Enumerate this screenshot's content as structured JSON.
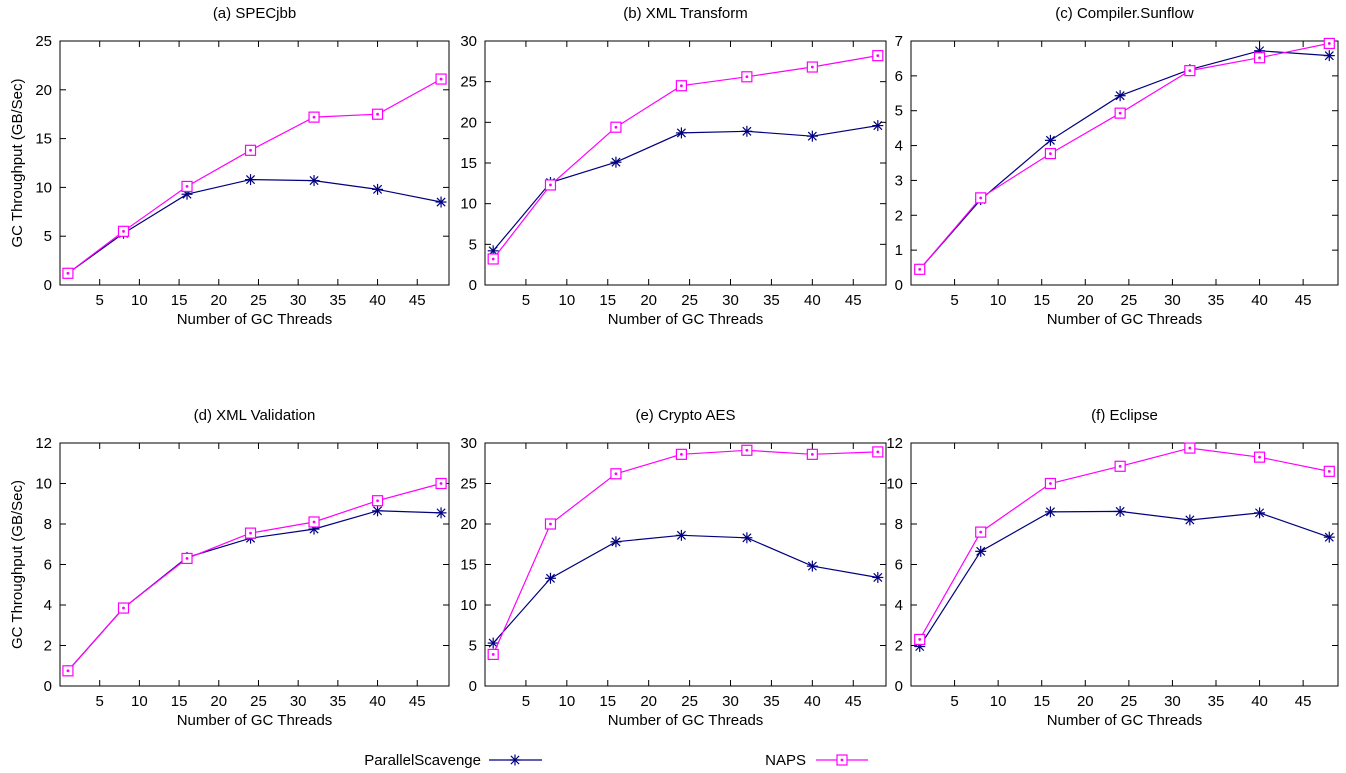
{
  "figure": {
    "xlabel": "Number of GC Threads",
    "ylabel": "GC Throughput (GB/Sec)",
    "x_ticks": [
      5,
      10,
      15,
      20,
      25,
      30,
      35,
      40,
      45
    ],
    "legend": [
      {
        "name": "ParallelScavenge",
        "color": "#000080",
        "marker": "star"
      },
      {
        "name": "NAPS",
        "color": "#ff00ff",
        "marker": "square-dot"
      }
    ]
  },
  "chart_data": [
    {
      "type": "line",
      "title": "(a) SPECjbb",
      "xlabel": "Number of GC Threads",
      "ylabel": "GC Throughput (GB/Sec)",
      "x": [
        1,
        8,
        16,
        24,
        32,
        40,
        48
      ],
      "xlim": [
        0,
        49
      ],
      "ylim": [
        0,
        25
      ],
      "y_ticks": [
        0,
        5,
        10,
        15,
        20,
        25
      ],
      "series": [
        {
          "name": "ParallelScavenge",
          "values": [
            1.2,
            5.3,
            9.3,
            10.8,
            10.7,
            9.8,
            8.5
          ]
        },
        {
          "name": "NAPS",
          "values": [
            1.2,
            5.5,
            10.1,
            13.8,
            17.2,
            17.5,
            21.1
          ]
        }
      ]
    },
    {
      "type": "line",
      "title": "(b) XML Transform",
      "xlabel": "Number of GC Threads",
      "ylabel": "",
      "x": [
        1,
        8,
        16,
        24,
        32,
        40,
        48
      ],
      "xlim": [
        0,
        49
      ],
      "ylim": [
        0,
        30
      ],
      "y_ticks": [
        0,
        5,
        10,
        15,
        20,
        25,
        30
      ],
      "series": [
        {
          "name": "ParallelScavenge",
          "values": [
            4.2,
            12.6,
            15.1,
            18.7,
            18.9,
            18.3,
            19.6
          ]
        },
        {
          "name": "NAPS",
          "values": [
            3.2,
            12.3,
            19.4,
            24.5,
            25.6,
            26.8,
            28.2
          ]
        }
      ]
    },
    {
      "type": "line",
      "title": "(c) Compiler.Sunflow",
      "xlabel": "Number of GC Threads",
      "ylabel": "",
      "x": [
        1,
        8,
        16,
        24,
        32,
        40,
        48
      ],
      "xlim": [
        0,
        49
      ],
      "ylim": [
        0,
        7
      ],
      "y_ticks": [
        0,
        1,
        2,
        3,
        4,
        5,
        6,
        7
      ],
      "series": [
        {
          "name": "ParallelScavenge",
          "values": [
            0.45,
            2.45,
            4.15,
            5.43,
            6.18,
            6.72,
            6.58
          ]
        },
        {
          "name": "NAPS",
          "values": [
            0.45,
            2.5,
            3.77,
            4.93,
            6.15,
            6.52,
            6.93
          ]
        }
      ]
    },
    {
      "type": "line",
      "title": "(d) XML Validation",
      "xlabel": "Number of GC Threads",
      "ylabel": "GC Throughput (GB/Sec)",
      "x": [
        1,
        8,
        16,
        24,
        32,
        40,
        48
      ],
      "xlim": [
        0,
        49
      ],
      "ylim": [
        0,
        12
      ],
      "y_ticks": [
        0,
        2,
        4,
        6,
        8,
        10,
        12
      ],
      "series": [
        {
          "name": "ParallelScavenge",
          "values": [
            0.75,
            3.85,
            6.35,
            7.3,
            7.75,
            8.65,
            8.55
          ]
        },
        {
          "name": "NAPS",
          "values": [
            0.75,
            3.85,
            6.3,
            7.55,
            8.1,
            9.15,
            10.0
          ]
        }
      ]
    },
    {
      "type": "line",
      "title": "(e) Crypto AES",
      "xlabel": "Number of GC Threads",
      "ylabel": "",
      "x": [
        1,
        8,
        16,
        24,
        32,
        40,
        48
      ],
      "xlim": [
        0,
        49
      ],
      "ylim": [
        0,
        30
      ],
      "y_ticks": [
        0,
        5,
        10,
        15,
        20,
        25,
        30
      ],
      "series": [
        {
          "name": "ParallelScavenge",
          "values": [
            5.3,
            13.3,
            17.8,
            18.6,
            18.3,
            14.8,
            13.4
          ]
        },
        {
          "name": "NAPS",
          "values": [
            3.9,
            20.0,
            26.2,
            28.6,
            29.1,
            28.6,
            28.9
          ]
        }
      ]
    },
    {
      "type": "line",
      "title": "(f) Eclipse",
      "xlabel": "Number of GC Threads",
      "ylabel": "",
      "x": [
        1,
        8,
        16,
        24,
        32,
        40,
        48
      ],
      "xlim": [
        0,
        49
      ],
      "ylim": [
        0,
        12
      ],
      "y_ticks": [
        0,
        2,
        4,
        6,
        8,
        10,
        12
      ],
      "series": [
        {
          "name": "ParallelScavenge",
          "values": [
            1.95,
            6.65,
            8.6,
            8.62,
            8.2,
            8.55,
            7.35
          ]
        },
        {
          "name": "NAPS",
          "values": [
            2.3,
            7.6,
            10.0,
            10.85,
            11.75,
            11.3,
            10.6
          ]
        }
      ]
    }
  ]
}
